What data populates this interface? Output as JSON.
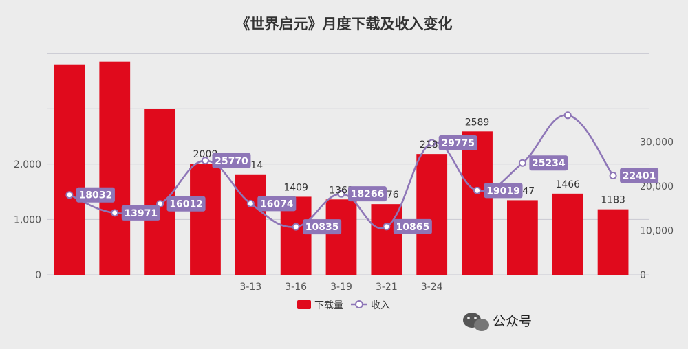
{
  "chart_data": {
    "type": "bar",
    "title": "《世界启元》月度下载及收入变化",
    "categories": [
      "",
      "",
      "",
      "",
      "3-13",
      "3-16",
      "3-19",
      "3-21",
      "3-24",
      "",
      "",
      "",
      ""
    ],
    "series": [
      {
        "name": "下载量",
        "type": "bar",
        "axis": "left",
        "values": [
          3800,
          3850,
          3000,
          2008,
          1814,
          1409,
          1361,
          1276,
          2182,
          2589,
          1347,
          1466,
          1183
        ],
        "labels": [
          "",
          "",
          "",
          "2008",
          "1814",
          "1409",
          "1361",
          "1276",
          "2182",
          "2589",
          "1347",
          "1466",
          "1183"
        ],
        "color": "#e00a1c"
      },
      {
        "name": "收入",
        "type": "line",
        "axis": "right",
        "values": [
          18032,
          13971,
          16012,
          25770,
          16074,
          10835,
          18266,
          10865,
          29775,
          19019,
          25234,
          36000,
          22401
        ],
        "labels": [
          "18032",
          "13971",
          "16012",
          "25770",
          "16074",
          "10835",
          "18266",
          "10865",
          "29775",
          "19019",
          "25234",
          "",
          "22401"
        ],
        "color": "#8e76b7"
      }
    ],
    "y_left": {
      "ticks": [
        "0",
        "1,000",
        "2,000"
      ],
      "tick_values": [
        0,
        1000,
        2000
      ],
      "range": [
        0,
        4000
      ]
    },
    "y_right": {
      "ticks": [
        "0",
        "10,000",
        "20,000",
        "30,000"
      ],
      "tick_values": [
        0,
        10000,
        20000,
        30000
      ],
      "range": [
        0,
        40000
      ]
    },
    "legend_position": "bottom",
    "grid": true
  },
  "watermark": {
    "text": "公众号"
  }
}
